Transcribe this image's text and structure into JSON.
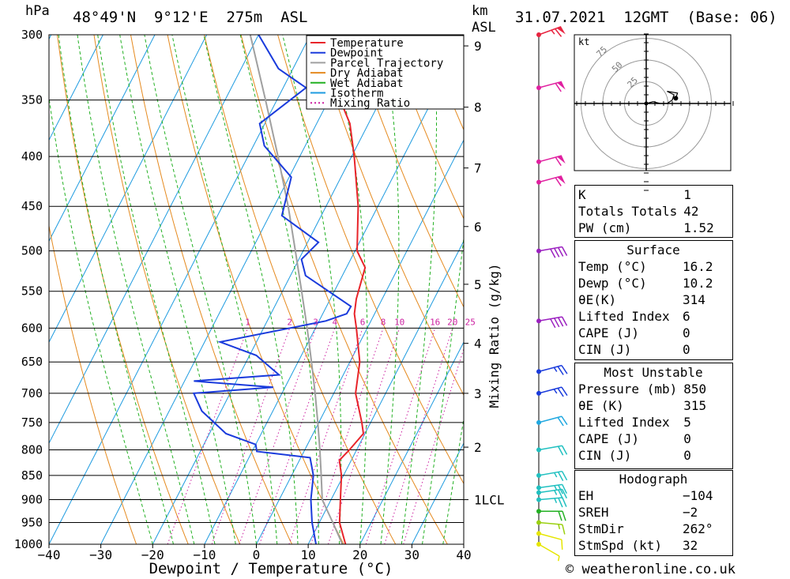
{
  "header": {
    "hpa_unit": "hPa",
    "location": "48°49'N  9°12'E  275m  ASL",
    "km_unit": "km",
    "asl_unit": "ASL",
    "datetime": "31.07.2021  12GMT  (Base: 06)"
  },
  "footer": {
    "copyright": "© weatheronline.co.uk"
  },
  "chart_data": {
    "type": "skew-t",
    "xlabel": "Dewpoint / Temperature (°C)",
    "ylabel_right": "Mixing Ratio (g/kg)",
    "xlim": [
      -40,
      40
    ],
    "ylim_hpa": [
      1000,
      300
    ],
    "pressure_ticks": [
      300,
      350,
      400,
      450,
      500,
      550,
      600,
      650,
      700,
      750,
      800,
      850,
      900,
      950,
      1000
    ],
    "temperature_ticks": [
      -40,
      -30,
      -20,
      -10,
      0,
      10,
      20,
      30,
      40
    ],
    "temperature_tick_labels": [
      "−40",
      "−30",
      "−20",
      "−10",
      "0",
      "10",
      "20",
      "30",
      "40"
    ],
    "km_ticks": [
      {
        "km": 1,
        "hpa": 900,
        "label": "1LCL"
      },
      {
        "km": 2,
        "hpa": 795,
        "label": "2"
      },
      {
        "km": 3,
        "hpa": 700,
        "label": "3"
      },
      {
        "km": 4,
        "hpa": 622,
        "label": "4"
      },
      {
        "km": 5,
        "hpa": 541,
        "label": "5"
      },
      {
        "km": 6,
        "hpa": 472,
        "label": "6"
      },
      {
        "km": 7,
        "hpa": 411,
        "label": "7"
      },
      {
        "km": 8,
        "hpa": 356,
        "label": "8"
      },
      {
        "km": 9,
        "hpa": 308,
        "label": "9"
      }
    ],
    "mixing_ratio_values": [
      1,
      2,
      3,
      4,
      6,
      8,
      10,
      16,
      20,
      25
    ],
    "mixing_ratio_labels": [
      "1",
      "2",
      "3",
      "4",
      "6",
      "8",
      "10",
      "16",
      "20",
      "25"
    ],
    "legend": [
      {
        "label": "Temperature",
        "color": "#e8242a",
        "style": "solid"
      },
      {
        "label": "Dewpoint",
        "color": "#1a3bdc",
        "style": "solid"
      },
      {
        "label": "Parcel Trajectory",
        "color": "#a0a0a0",
        "style": "solid"
      },
      {
        "label": "Dry Adiabat",
        "color": "#e58a1f",
        "style": "solid"
      },
      {
        "label": "Wet Adiabat",
        "color": "#22b022",
        "style": "solid"
      },
      {
        "label": "Isotherm",
        "color": "#1e9be0",
        "style": "solid"
      },
      {
        "label": "Mixing Ratio",
        "color": "#cc1fa0",
        "style": "dotted"
      }
    ],
    "temperature_profile": [
      {
        "p": 1000,
        "t": 17.2
      },
      {
        "p": 950,
        "t": 13.9
      },
      {
        "p": 900,
        "t": 11.8
      },
      {
        "p": 850,
        "t": 9.6
      },
      {
        "p": 820,
        "t": 7.7
      },
      {
        "p": 800,
        "t": 8.6
      },
      {
        "p": 770,
        "t": 9.7
      },
      {
        "p": 750,
        "t": 8.3
      },
      {
        "p": 700,
        "t": 4.2
      },
      {
        "p": 650,
        "t": 1.9
      },
      {
        "p": 600,
        "t": -2.1
      },
      {
        "p": 580,
        "t": -3.9
      },
      {
        "p": 560,
        "t": -5.0
      },
      {
        "p": 520,
        "t": -6.4
      },
      {
        "p": 500,
        "t": -9.6
      },
      {
        "p": 450,
        "t": -13.8
      },
      {
        "p": 400,
        "t": -19.5
      },
      {
        "p": 370,
        "t": -23.6
      },
      {
        "p": 350,
        "t": -27.8
      },
      {
        "p": 300,
        "t": -36.2
      }
    ],
    "dewpoint_profile": [
      {
        "p": 1000,
        "td": 11.5
      },
      {
        "p": 950,
        "td": 8.6
      },
      {
        "p": 900,
        "td": 6.1
      },
      {
        "p": 850,
        "td": 4.2
      },
      {
        "p": 815,
        "td": 1.8
      },
      {
        "p": 803,
        "td": -9.1
      },
      {
        "p": 790,
        "td": -10.0
      },
      {
        "p": 770,
        "td": -16.8
      },
      {
        "p": 730,
        "td": -23.7
      },
      {
        "p": 700,
        "td": -27.0
      },
      {
        "p": 690,
        "td": -12.3
      },
      {
        "p": 680,
        "td": -28.2
      },
      {
        "p": 670,
        "td": -12.4
      },
      {
        "p": 640,
        "td": -18.7
      },
      {
        "p": 620,
        "td": -27.0
      },
      {
        "p": 590,
        "td": -8.7
      },
      {
        "p": 580,
        "td": -5.4
      },
      {
        "p": 570,
        "td": -5.3
      },
      {
        "p": 530,
        "td": -17.1
      },
      {
        "p": 510,
        "td": -19.5
      },
      {
        "p": 490,
        "td": -17.9
      },
      {
        "p": 460,
        "td": -27.6
      },
      {
        "p": 420,
        "td": -29.6
      },
      {
        "p": 390,
        "td": -37.9
      },
      {
        "p": 370,
        "td": -41.0
      },
      {
        "p": 340,
        "td": -35.6
      },
      {
        "p": 325,
        "td": -42.8
      },
      {
        "p": 300,
        "td": -50.0
      }
    ],
    "parcel_profile": [
      {
        "p": 1000,
        "t": 16.6
      },
      {
        "p": 950,
        "t": 12.6
      },
      {
        "p": 900,
        "t": 8.3
      },
      {
        "p": 850,
        "t": 5.7
      },
      {
        "p": 800,
        "t": 2.9
      },
      {
        "p": 750,
        "t": -0.2
      },
      {
        "p": 700,
        "t": -3.6
      },
      {
        "p": 650,
        "t": -7.4
      },
      {
        "p": 600,
        "t": -11.6
      },
      {
        "p": 550,
        "t": -16.3
      },
      {
        "p": 500,
        "t": -21.5
      },
      {
        "p": 450,
        "t": -27.3
      },
      {
        "p": 400,
        "t": -34.2
      },
      {
        "p": 350,
        "t": -42.2
      },
      {
        "p": 300,
        "t": -51.6
      }
    ],
    "wind_profile": [
      {
        "p": 1000,
        "dir": 300,
        "spd": 5,
        "color": "#e6e600"
      },
      {
        "p": 975,
        "dir": 285,
        "spd": 10,
        "color": "#e6e600"
      },
      {
        "p": 950,
        "dir": 275,
        "spd": 15,
        "color": "#9ad010"
      },
      {
        "p": 925,
        "dir": 270,
        "spd": 20,
        "color": "#22b022"
      },
      {
        "p": 900,
        "dir": 265,
        "spd": 25,
        "color": "#20c0c0"
      },
      {
        "p": 885,
        "dir": 262,
        "spd": 25,
        "color": "#20c0c0"
      },
      {
        "p": 875,
        "dir": 262,
        "spd": 25,
        "color": "#20c0c0"
      },
      {
        "p": 850,
        "dir": 260,
        "spd": 25,
        "color": "#20c0c0"
      },
      {
        "p": 800,
        "dir": 260,
        "spd": 20,
        "color": "#20c0c0"
      },
      {
        "p": 750,
        "dir": 255,
        "spd": 20,
        "color": "#20a8e0"
      },
      {
        "p": 700,
        "dir": 255,
        "spd": 25,
        "color": "#1a3bdc"
      },
      {
        "p": 665,
        "dir": 255,
        "spd": 25,
        "color": "#1a3bdc"
      },
      {
        "p": 590,
        "dir": 260,
        "spd": 40,
        "color": "#9b20c0"
      },
      {
        "p": 500,
        "dir": 260,
        "spd": 40,
        "color": "#9b20c0"
      },
      {
        "p": 425,
        "dir": 255,
        "spd": 60,
        "color": "#e020a0"
      },
      {
        "p": 405,
        "dir": 255,
        "spd": 60,
        "color": "#e020a0"
      },
      {
        "p": 340,
        "dir": 255,
        "spd": 60,
        "color": "#e020a0"
      },
      {
        "p": 300,
        "dir": 250,
        "spd": 65,
        "color": "#e82440"
      }
    ],
    "hodograph": {
      "unit": "kt",
      "ring_labels": [
        "25",
        "50",
        "75"
      ],
      "points": [
        {
          "u": 0,
          "v": 0
        },
        {
          "u": 4,
          "v": 1
        },
        {
          "u": 8,
          "v": 0
        },
        {
          "u": 12,
          "v": 0
        },
        {
          "u": 15,
          "v": 2
        },
        {
          "u": 16,
          "v": 5
        },
        {
          "u": 12,
          "v": 7
        },
        {
          "u": 18,
          "v": 6
        },
        {
          "u": 17,
          "v": 3
        }
      ]
    }
  },
  "indices": [
    {
      "label": "K",
      "value": "1"
    },
    {
      "label": "Totals Totals",
      "value": "42"
    },
    {
      "label": "PW (cm)",
      "value": "1.52"
    }
  ],
  "surface": {
    "title": "Surface",
    "rows": [
      {
        "label": "Temp (°C)",
        "value": "16.2"
      },
      {
        "label": "Dewp (°C)",
        "value": "10.2"
      },
      {
        "label": "θE(K)",
        "value": "314"
      },
      {
        "label": "Lifted Index",
        "value": "6"
      },
      {
        "label": "CAPE (J)",
        "value": "0"
      },
      {
        "label": "CIN (J)",
        "value": "0"
      }
    ]
  },
  "most_unstable": {
    "title": "Most Unstable",
    "rows": [
      {
        "label": "Pressure (mb)",
        "value": "850"
      },
      {
        "label": "θE (K)",
        "value": "315"
      },
      {
        "label": "Lifted Index",
        "value": "5"
      },
      {
        "label": "CAPE (J)",
        "value": "0"
      },
      {
        "label": "CIN (J)",
        "value": "0"
      }
    ]
  },
  "hodograph_table": {
    "title": "Hodograph",
    "rows": [
      {
        "label": "EH",
        "value": "−104"
      },
      {
        "label": "SREH",
        "value": "−2"
      },
      {
        "label": "StmDir",
        "value": "262°"
      },
      {
        "label": "StmSpd (kt)",
        "value": "32"
      }
    ]
  }
}
